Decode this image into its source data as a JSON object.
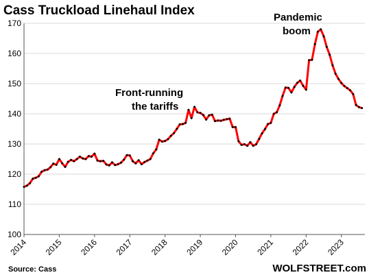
{
  "chart_data": {
    "type": "line",
    "title": "Cass Truckload Linehaul Index",
    "xlabel": "",
    "ylabel": "",
    "ylim": [
      100,
      170
    ],
    "xlim": [
      "2014-01",
      "2023-09"
    ],
    "y_ticks": [
      "100",
      "110",
      "120",
      "130",
      "140",
      "150",
      "160",
      "170"
    ],
    "x_ticks": [
      "2014",
      "2015",
      "2016",
      "2017",
      "2018",
      "2019",
      "2020",
      "2021",
      "2022",
      "2023"
    ],
    "grid": true,
    "line_color": "#ff0000",
    "marker_color": "#000000",
    "series": [
      {
        "x": [
          "2014-01",
          "2014-02",
          "2014-03",
          "2014-04",
          "2014-05",
          "2014-06",
          "2014-07",
          "2014-08",
          "2014-09",
          "2014-10",
          "2014-11",
          "2014-12",
          "2015-01",
          "2015-02",
          "2015-03",
          "2015-04",
          "2015-05",
          "2015-06",
          "2015-07",
          "2015-08",
          "2015-09",
          "2015-10",
          "2015-11",
          "2015-12",
          "2016-01",
          "2016-02",
          "2016-03",
          "2016-04",
          "2016-05",
          "2016-06",
          "2016-07",
          "2016-08",
          "2016-09",
          "2016-10",
          "2016-11",
          "2016-12",
          "2017-01",
          "2017-02",
          "2017-03",
          "2017-04",
          "2017-05",
          "2017-06",
          "2017-07",
          "2017-08",
          "2017-09",
          "2017-10",
          "2017-11",
          "2017-12",
          "2018-01",
          "2018-02",
          "2018-03",
          "2018-04",
          "2018-05",
          "2018-06",
          "2018-07",
          "2018-08",
          "2018-09",
          "2018-10",
          "2018-11",
          "2018-12",
          "2019-01",
          "2019-02",
          "2019-03",
          "2019-04",
          "2019-05",
          "2019-06",
          "2019-07",
          "2019-08",
          "2019-09",
          "2019-10",
          "2019-11",
          "2019-12",
          "2020-01",
          "2020-02",
          "2020-03",
          "2020-04",
          "2020-05",
          "2020-06",
          "2020-07",
          "2020-08",
          "2020-09",
          "2020-10",
          "2020-11",
          "2020-12",
          "2021-01",
          "2021-02",
          "2021-03",
          "2021-04",
          "2021-05",
          "2021-06",
          "2021-07",
          "2021-08",
          "2021-09",
          "2021-10",
          "2021-11",
          "2021-12",
          "2022-01",
          "2022-02",
          "2022-03",
          "2022-04",
          "2022-05",
          "2022-06",
          "2022-07",
          "2022-08",
          "2022-09",
          "2022-10",
          "2022-11",
          "2022-12",
          "2023-01",
          "2023-02",
          "2023-03",
          "2023-04",
          "2023-05",
          "2023-06",
          "2023-07",
          "2023-08"
        ],
        "values": [
          115.8,
          116.2,
          117.0,
          118.5,
          118.8,
          119.3,
          120.8,
          121.3,
          121.5,
          122.3,
          123.5,
          123.1,
          125.0,
          123.6,
          122.4,
          124.1,
          124.7,
          124.3,
          125.0,
          125.8,
          125.2,
          125.0,
          126.0,
          125.8,
          126.8,
          124.5,
          124.3,
          124.4,
          123.2,
          122.9,
          123.9,
          123.0,
          123.3,
          123.8,
          124.8,
          126.3,
          126.2,
          124.3,
          123.6,
          124.6,
          123.3,
          124.0,
          124.5,
          125.0,
          126.9,
          128.2,
          131.4,
          130.8,
          131.0,
          131.6,
          132.7,
          133.6,
          135.0,
          136.5,
          136.6,
          137.0,
          141.3,
          138.6,
          142.3,
          140.5,
          140.3,
          139.6,
          138.1,
          139.5,
          139.7,
          137.6,
          137.8,
          137.7,
          138.0,
          138.2,
          138.4,
          135.6,
          135.6,
          130.9,
          129.7,
          129.9,
          129.4,
          130.6,
          129.4,
          129.9,
          131.7,
          133.5,
          134.9,
          136.6,
          137.0,
          140.0,
          140.5,
          142.8,
          145.9,
          148.7,
          148.6,
          147.1,
          148.9,
          150.3,
          151.0,
          149.3,
          148.0,
          157.8,
          157.9,
          163.1,
          167.2,
          168.0,
          165.7,
          162.2,
          159.6,
          156.1,
          153.3,
          151.6,
          150.2,
          149.2,
          148.5,
          147.8,
          146.5,
          142.9,
          142.2,
          141.9
        ]
      }
    ],
    "annotations": [
      {
        "text_lines": [
          "Front-running",
          "the tariffs"
        ],
        "at": "2018-06"
      },
      {
        "text_lines": [
          "Pandemic",
          "boom"
        ],
        "at": "2021-08"
      }
    ],
    "source": "Source: Cass",
    "brand": "WOLFSTREET.com"
  }
}
